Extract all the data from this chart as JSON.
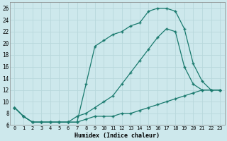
{
  "xlabel": "Humidex (Indice chaleur)",
  "background_color": "#cde8ec",
  "line_color": "#1a7a6e",
  "grid_color": "#b8d8dc",
  "xlim": [
    -0.5,
    23.5
  ],
  "ylim": [
    6,
    27
  ],
  "xticks": [
    0,
    1,
    2,
    3,
    4,
    5,
    6,
    7,
    8,
    9,
    10,
    11,
    12,
    13,
    14,
    15,
    16,
    17,
    18,
    19,
    20,
    21,
    22,
    23
  ],
  "yticks": [
    6,
    8,
    10,
    12,
    14,
    16,
    18,
    20,
    22,
    24,
    26
  ],
  "series": [
    {
      "x": [
        0,
        1,
        2,
        3,
        4,
        5,
        6,
        7,
        8,
        9,
        10,
        11,
        12,
        13,
        14,
        15,
        16,
        17,
        18,
        19,
        20,
        21,
        22,
        23
      ],
      "y": [
        9,
        7.5,
        6.5,
        6.5,
        6.5,
        6.5,
        6.5,
        6.5,
        13,
        19.5,
        20.5,
        21.5,
        22,
        23,
        23.5,
        25.5,
        26,
        26,
        25.5,
        22.5,
        16.5,
        13.5,
        12,
        12
      ]
    },
    {
      "x": [
        0,
        1,
        2,
        3,
        4,
        5,
        6,
        7,
        8,
        9,
        10,
        11,
        12,
        13,
        14,
        15,
        16,
        17,
        18,
        19,
        20,
        21,
        22,
        23
      ],
      "y": [
        9,
        7.5,
        6.5,
        6.5,
        6.5,
        6.5,
        6.5,
        7.5,
        8,
        9,
        10,
        11,
        13,
        15,
        17,
        19,
        21,
        22.5,
        22,
        16,
        13,
        12,
        12,
        12
      ]
    },
    {
      "x": [
        0,
        1,
        2,
        3,
        4,
        5,
        6,
        7,
        8,
        9,
        10,
        11,
        12,
        13,
        14,
        15,
        16,
        17,
        18,
        19,
        20,
        21,
        22,
        23
      ],
      "y": [
        9,
        7.5,
        6.5,
        6.5,
        6.5,
        6.5,
        6.5,
        6.5,
        7.0,
        7.5,
        7.5,
        7.5,
        8,
        8,
        8.5,
        9,
        9.5,
        10,
        10.5,
        11,
        11.5,
        12,
        12,
        12
      ]
    }
  ]
}
